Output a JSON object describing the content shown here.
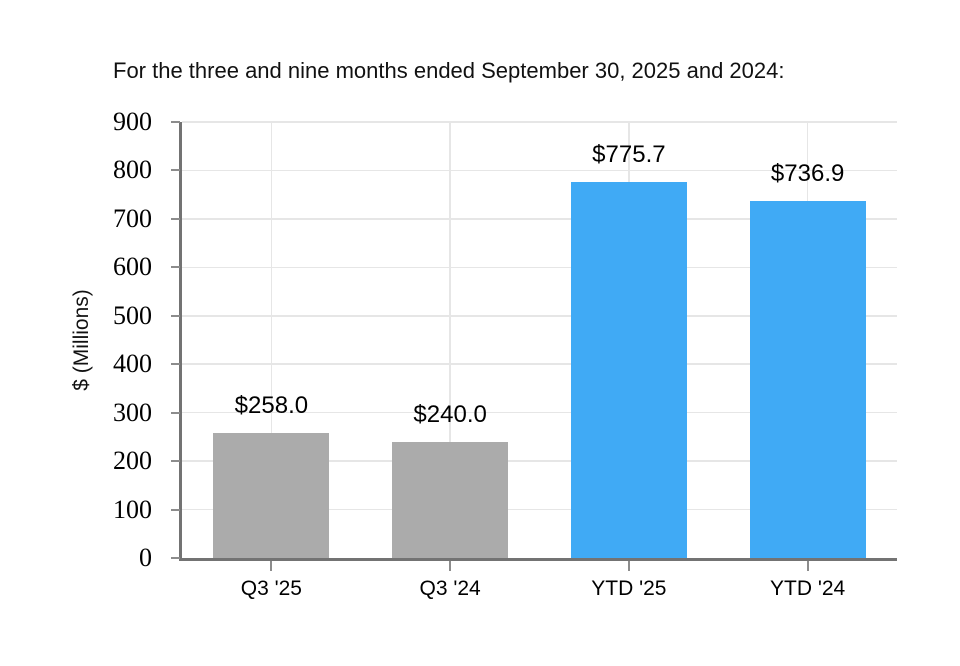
{
  "title": "For the three and nine months ended September 30, 2025 and 2024:",
  "chart_data": {
    "type": "bar",
    "categories": [
      "Q3 '25",
      "Q3 '24",
      "YTD '25",
      "YTD '24"
    ],
    "values": [
      258.0,
      240.0,
      775.7,
      736.9
    ],
    "data_labels": [
      "$258.0",
      "$240.0",
      "$775.7",
      "$736.9"
    ],
    "bar_colors": [
      "#ababab",
      "#ababab",
      "#40aaf5",
      "#40aaf5"
    ],
    "title": "For the three and nine months ended September 30, 2025 and 2024:",
    "xlabel": "",
    "ylabel": "$ (Millions)",
    "ylim": [
      0,
      900
    ],
    "yticks": [
      0,
      100,
      200,
      300,
      400,
      500,
      600,
      700,
      800,
      900
    ],
    "grid": "both",
    "legend": "none"
  },
  "colors": {
    "background": "#ffffff",
    "bar_gray": "#ababab",
    "bar_blue": "#40aaf5",
    "axis_spine": "#737373",
    "tick_mark": "#8c8c8c",
    "gridline": "#e6e6e6",
    "text": "#000000"
  }
}
